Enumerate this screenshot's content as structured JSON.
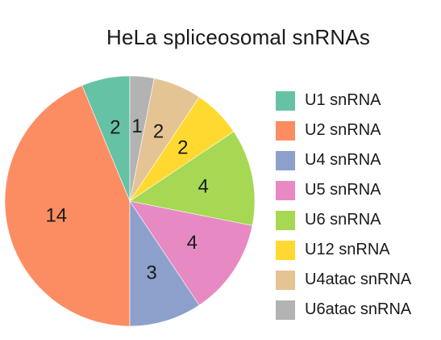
{
  "chart_data": {
    "type": "pie",
    "title": "HeLa spliceosomal snRNAs",
    "legend_position": "right",
    "slices": [
      {
        "label": "U1 snRNA",
        "value": 2,
        "color": "#66c2a5"
      },
      {
        "label": "U2 snRNA",
        "value": 14,
        "color": "#fc8d62"
      },
      {
        "label": "U4 snRNA",
        "value": 3,
        "color": "#8da0cb"
      },
      {
        "label": "U5 snRNA",
        "value": 4,
        "color": "#e78ac3"
      },
      {
        "label": "U6 snRNA",
        "value": 4,
        "color": "#a6d854"
      },
      {
        "label": "U12 snRNA",
        "value": 2,
        "color": "#ffd92f"
      },
      {
        "label": "U4atac snRNA",
        "value": 2,
        "color": "#e5c494"
      },
      {
        "label": "U6atac snRNA",
        "value": 1,
        "color": "#b3b3b3"
      }
    ],
    "legend": [
      "U1 snRNA",
      "U2 snRNA",
      "U4 snRNA",
      "U5 snRNA",
      "U6 snRNA",
      "U12 snRNA",
      "U4atac snRNA",
      "U6atac snRNA"
    ]
  }
}
